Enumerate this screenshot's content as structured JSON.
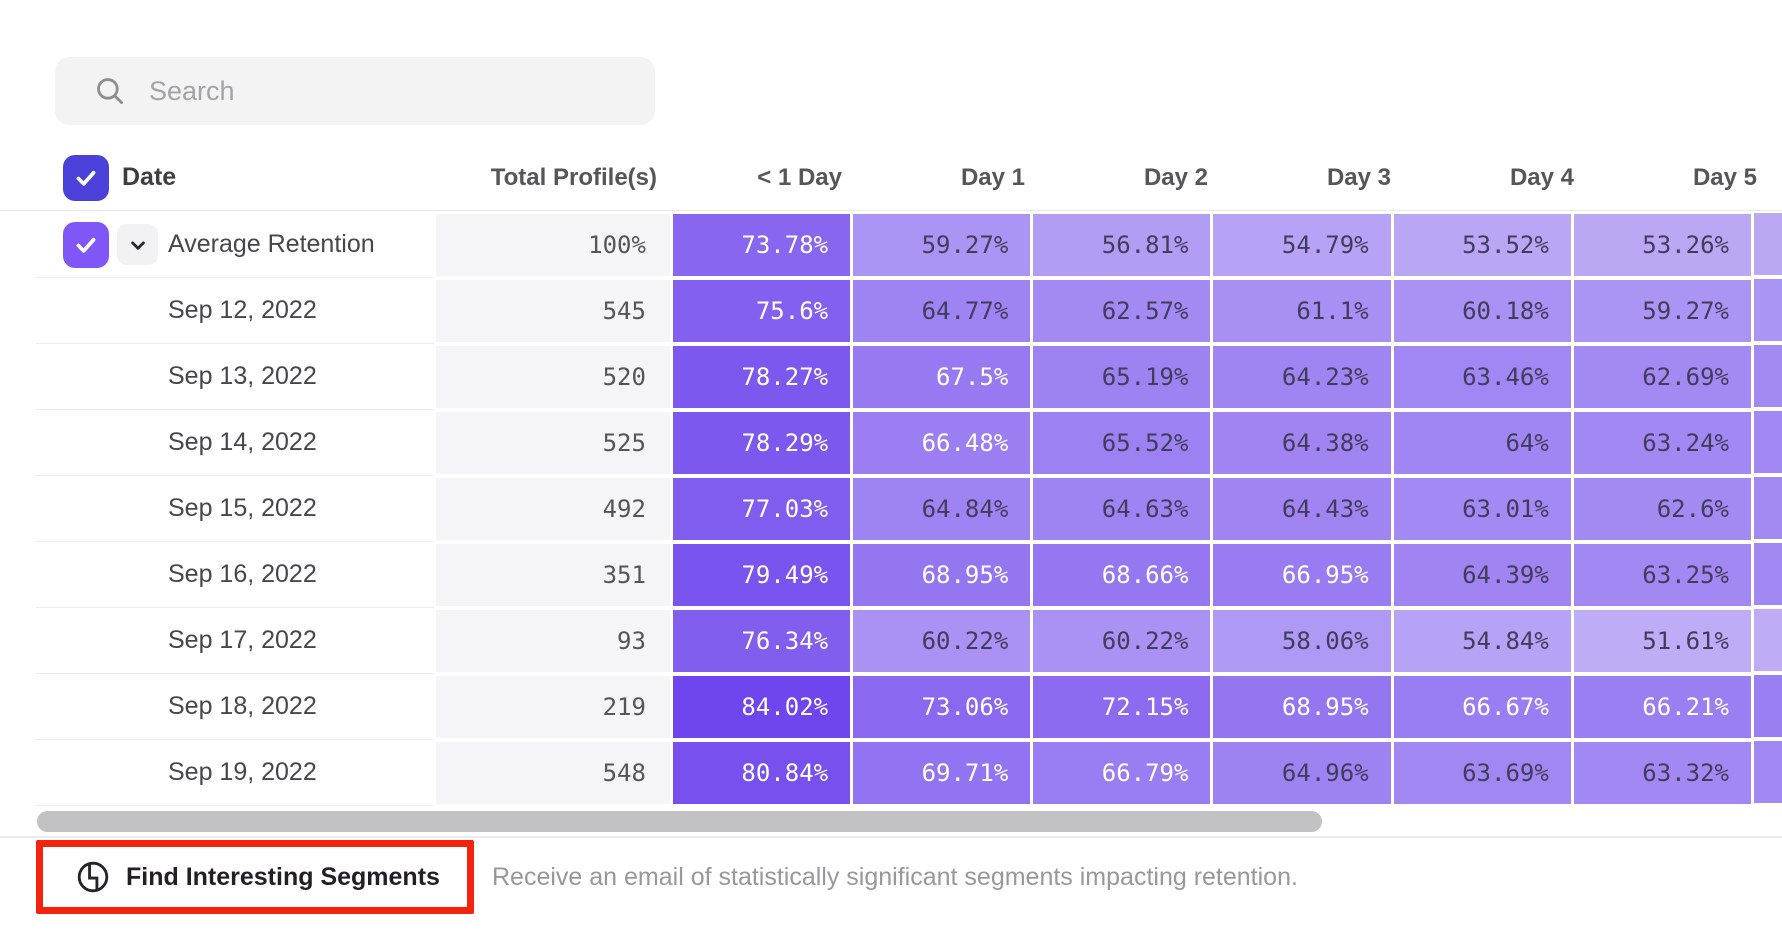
{
  "search": {
    "placeholder": "Search",
    "icon": "search-icon"
  },
  "table": {
    "date_header": "Date",
    "columns": [
      "Total Profile(s)",
      "< 1 Day",
      "Day 1",
      "Day 2",
      "Day 3",
      "Day 4",
      "Day 5"
    ],
    "rows": [
      {
        "label": "Average Retention",
        "is_average": true,
        "total": "100%",
        "values": [
          73.78,
          59.27,
          56.81,
          54.79,
          53.52,
          53.26
        ]
      },
      {
        "label": "Sep 12, 2022",
        "total": "545",
        "values": [
          75.6,
          64.77,
          62.57,
          61.1,
          60.18,
          59.27
        ]
      },
      {
        "label": "Sep 13, 2022",
        "total": "520",
        "values": [
          78.27,
          67.5,
          65.19,
          64.23,
          63.46,
          62.69
        ]
      },
      {
        "label": "Sep 14, 2022",
        "total": "525",
        "values": [
          78.29,
          66.48,
          65.52,
          64.38,
          64,
          63.24
        ]
      },
      {
        "label": "Sep 15, 2022",
        "total": "492",
        "values": [
          77.03,
          64.84,
          64.63,
          64.43,
          63.01,
          62.6
        ]
      },
      {
        "label": "Sep 16, 2022",
        "total": "351",
        "values": [
          79.49,
          68.95,
          68.66,
          66.95,
          64.39,
          63.25
        ]
      },
      {
        "label": "Sep 17, 2022",
        "total": "93",
        "values": [
          76.34,
          60.22,
          60.22,
          58.06,
          54.84,
          51.61
        ]
      },
      {
        "label": "Sep 18, 2022",
        "total": "219",
        "values": [
          84.02,
          73.06,
          72.15,
          68.95,
          66.67,
          66.21
        ]
      },
      {
        "label": "Sep 19, 2022",
        "total": "548",
        "values": [
          80.84,
          69.71,
          66.79,
          64.96,
          63.69,
          63.32
        ]
      }
    ],
    "value_suffix": "%"
  },
  "heatmap": {
    "color_min": "#c7b9f7",
    "color_max": "#6a3fec",
    "domain_min": 48,
    "domain_max": 86,
    "white_text_threshold": 66,
    "dark_text_color": "#423c5c",
    "light_text_color": "#ffffff"
  },
  "colors": {
    "header_checkbox": "#4b41da",
    "row_checkbox": "#8156f6",
    "annotation_red": "#f3230e",
    "total_column_bg": "#f5f4f6",
    "scrollbar_thumb": "#c2c1c3"
  },
  "icons": {
    "search": "search-icon",
    "header_check": "checkmark-icon",
    "row_check": "checkmark-icon",
    "expand": "chevron-down-icon",
    "segments": "signal-icon"
  },
  "footer": {
    "button_label": "Find Interesting Segments",
    "description": "Receive an email of statistically significant segments impacting retention."
  }
}
